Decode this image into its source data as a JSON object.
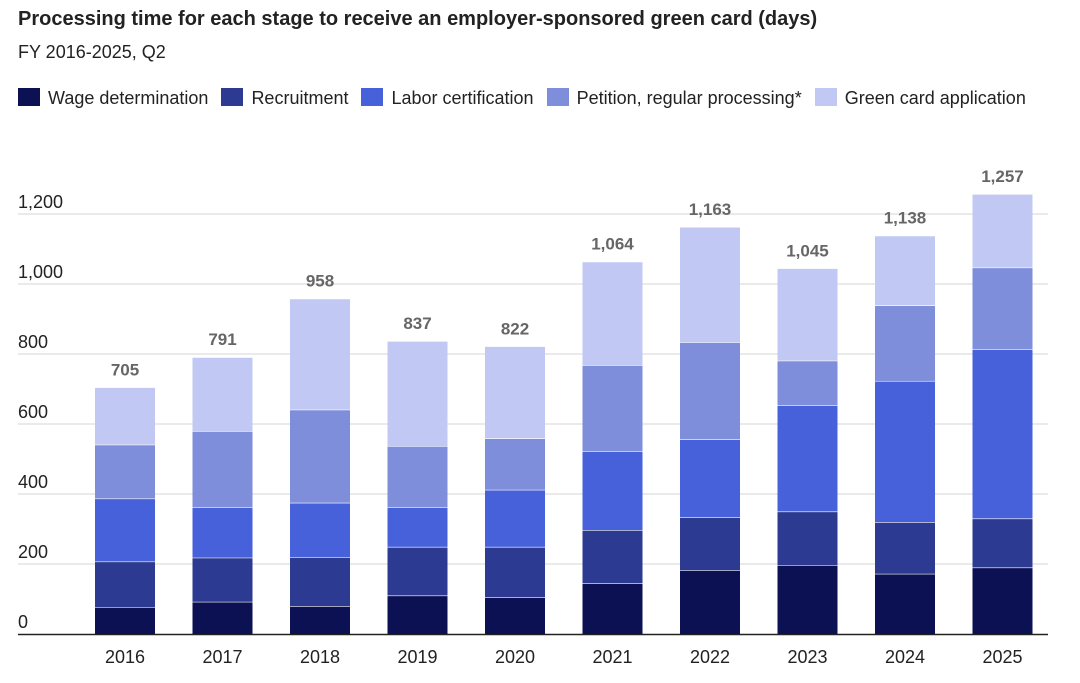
{
  "title": "Processing time for each stage to receive an employer-sponsored green card (days)",
  "subtitle": "FY 2016-2025, Q2",
  "chart_data": {
    "type": "bar",
    "stacked": true,
    "title": "Processing time for each stage to receive an employer-sponsored green card (days)",
    "subtitle": "FY 2016-2025, Q2",
    "categories": [
      "2016",
      "2017",
      "2018",
      "2019",
      "2020",
      "2021",
      "2022",
      "2023",
      "2024",
      "2025"
    ],
    "series": [
      {
        "name": "Wage determination",
        "color": "#0b1153",
        "values": [
          77,
          92,
          80,
          110,
          105,
          145,
          182,
          197,
          172,
          190
        ]
      },
      {
        "name": "Recruitment",
        "color": "#2c3a91",
        "values": [
          130,
          126,
          140,
          139,
          144,
          152,
          152,
          153,
          148,
          140
        ]
      },
      {
        "name": "Labor certification",
        "color": "#4761db",
        "values": [
          180,
          144,
          155,
          113,
          163,
          225,
          222,
          303,
          403,
          483
        ]
      },
      {
        "name": "Petition, regular processing*",
        "color": "#7f8edb",
        "values": [
          154,
          218,
          266,
          175,
          147,
          246,
          278,
          128,
          216,
          234
        ]
      },
      {
        "name": "Green card application",
        "color": "#c0c8f3",
        "values": [
          164,
          211,
          317,
          300,
          263,
          296,
          329,
          264,
          199,
          210
        ]
      }
    ],
    "totals": [
      "705",
      "791",
      "958",
      "837",
      "822",
      "1,064",
      "1,163",
      "1,045",
      "1,138",
      "1,257"
    ],
    "y_ticks": [
      "0",
      "200",
      "400",
      "600",
      "800",
      "1,000",
      "1,200"
    ],
    "ylim": [
      0,
      1200
    ],
    "grid": true,
    "legend_position": "top"
  }
}
